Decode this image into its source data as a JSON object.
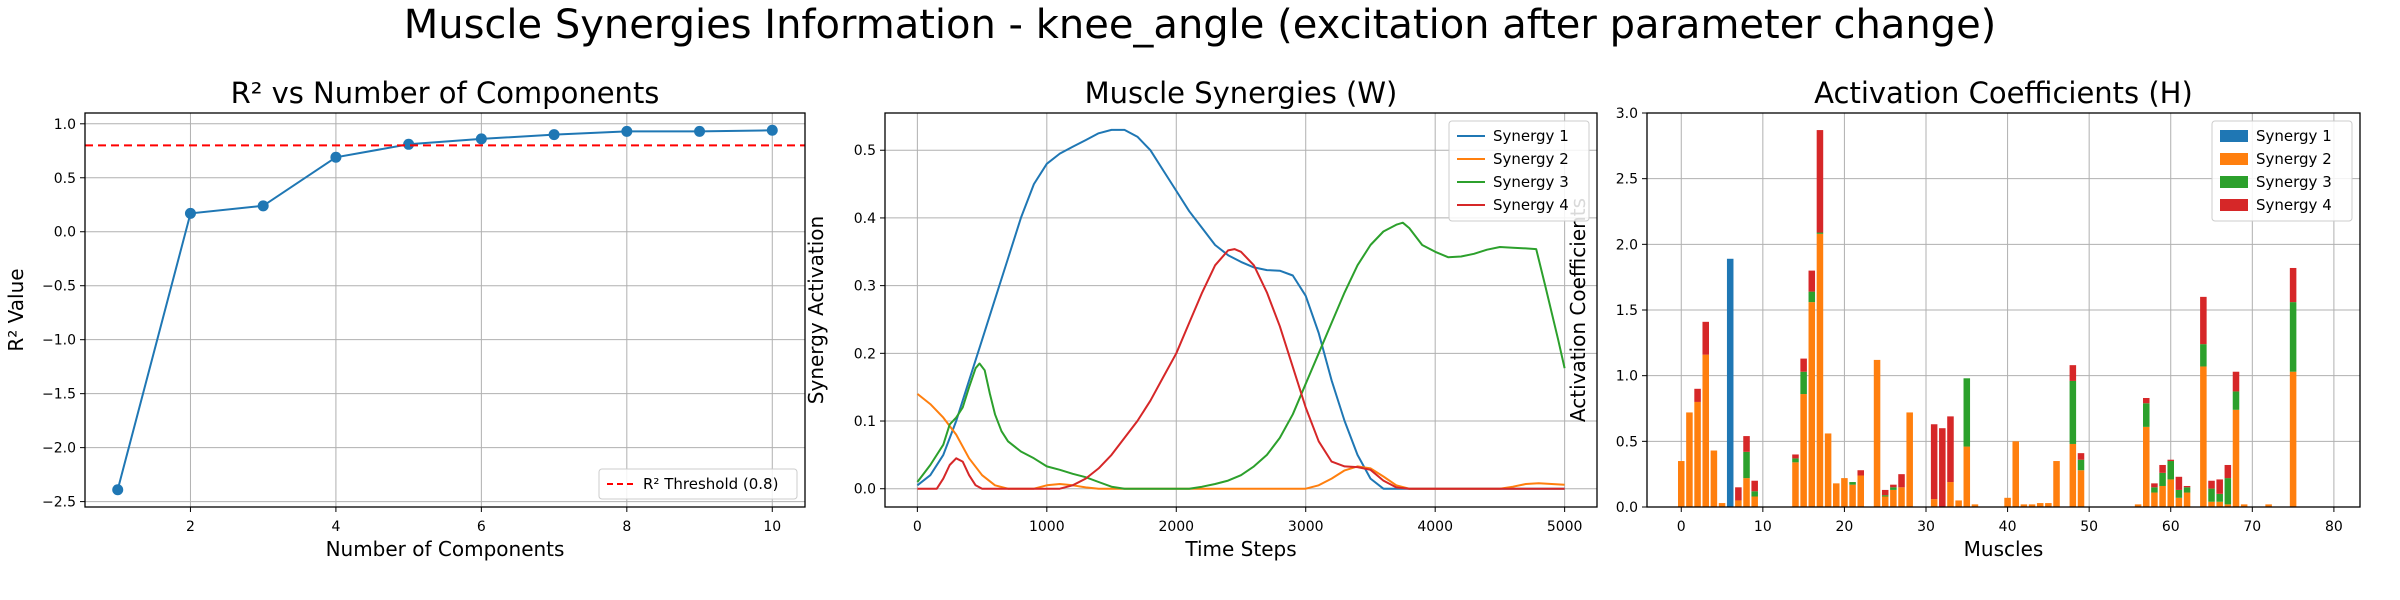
{
  "suptitle": "Muscle Synergies Information - knee_angle (excitation after parameter change)",
  "colors": {
    "blue": "#1f77b4",
    "orange": "#ff7f0e",
    "green": "#2ca02c",
    "red": "#d62728",
    "grid": "#b0b0b0",
    "threshold": "#ff0000"
  },
  "chart_data": [
    {
      "type": "line",
      "title": "R² vs Number of Components",
      "xlabel": "Number of Components",
      "ylabel": "R² Value",
      "x": [
        1,
        2,
        3,
        4,
        5,
        6,
        7,
        8,
        9,
        10
      ],
      "series": [
        {
          "values": [
            -2.39,
            0.17,
            0.24,
            0.69,
            0.81,
            0.86,
            0.9,
            0.93,
            0.93,
            0.94
          ]
        }
      ],
      "threshold": {
        "label": "R² Threshold (0.8)",
        "value": 0.8,
        "style": "dashed",
        "color": "red"
      },
      "xlim": [
        0.55,
        10.45
      ],
      "ylim": [
        -2.55,
        1.1
      ],
      "xticks": [
        2,
        4,
        6,
        8,
        10
      ],
      "yticks": [
        -2.5,
        -2.0,
        -1.5,
        -1.0,
        -0.5,
        0.0,
        0.5,
        1.0
      ],
      "ytick_labels": [
        "−2.5",
        "−2.0",
        "−1.5",
        "−1.0",
        "−0.5",
        "0.0",
        "0.5",
        "1.0"
      ],
      "grid": true,
      "legend": "lower right"
    },
    {
      "type": "line",
      "title": "Muscle Synergies (W)",
      "xlabel": "Time Steps",
      "ylabel": "Synergy Activation",
      "xlim": [
        -250,
        5250
      ],
      "ylim": [
        -0.027,
        0.555
      ],
      "xticks": [
        0,
        1000,
        2000,
        3000,
        4000,
        5000
      ],
      "yticks": [
        0.0,
        0.1,
        0.2,
        0.3,
        0.4,
        0.5
      ],
      "ytick_labels": [
        "0.0",
        "0.1",
        "0.2",
        "0.3",
        "0.4",
        "0.5"
      ],
      "grid": true,
      "legend": "upper right",
      "series": [
        {
          "name": "Synergy 1",
          "color": "blue",
          "points": [
            [
              0,
              0.005
            ],
            [
              100,
              0.02
            ],
            [
              200,
              0.05
            ],
            [
              300,
              0.1
            ],
            [
              400,
              0.16
            ],
            [
              500,
              0.22
            ],
            [
              600,
              0.28
            ],
            [
              700,
              0.34
            ],
            [
              800,
              0.4
            ],
            [
              900,
              0.45
            ],
            [
              1000,
              0.48
            ],
            [
              1100,
              0.495
            ],
            [
              1200,
              0.505
            ],
            [
              1300,
              0.515
            ],
            [
              1400,
              0.525
            ],
            [
              1500,
              0.53
            ],
            [
              1600,
              0.53
            ],
            [
              1700,
              0.52
            ],
            [
              1800,
              0.5
            ],
            [
              1900,
              0.47
            ],
            [
              2000,
              0.44
            ],
            [
              2100,
              0.41
            ],
            [
              2200,
              0.385
            ],
            [
              2300,
              0.36
            ],
            [
              2400,
              0.345
            ],
            [
              2500,
              0.335
            ],
            [
              2600,
              0.327
            ],
            [
              2700,
              0.323
            ],
            [
              2800,
              0.322
            ],
            [
              2900,
              0.315
            ],
            [
              3000,
              0.285
            ],
            [
              3100,
              0.23
            ],
            [
              3200,
              0.16
            ],
            [
              3300,
              0.1
            ],
            [
              3400,
              0.05
            ],
            [
              3500,
              0.015
            ],
            [
              3600,
              0.0
            ],
            [
              3700,
              0.0
            ],
            [
              3800,
              0.0
            ],
            [
              5000,
              0.0
            ]
          ]
        },
        {
          "name": "Synergy 2",
          "color": "orange",
          "points": [
            [
              0,
              0.14
            ],
            [
              100,
              0.125
            ],
            [
              200,
              0.105
            ],
            [
              300,
              0.08
            ],
            [
              400,
              0.045
            ],
            [
              500,
              0.02
            ],
            [
              600,
              0.005
            ],
            [
              700,
              0.0
            ],
            [
              900,
              0.0
            ],
            [
              1000,
              0.005
            ],
            [
              1100,
              0.007
            ],
            [
              1200,
              0.005
            ],
            [
              1300,
              0.002
            ],
            [
              1400,
              0.0
            ],
            [
              1500,
              0.0
            ],
            [
              3000,
              0.0
            ],
            [
              3100,
              0.005
            ],
            [
              3200,
              0.015
            ],
            [
              3300,
              0.027
            ],
            [
              3400,
              0.033
            ],
            [
              3500,
              0.03
            ],
            [
              3600,
              0.018
            ],
            [
              3700,
              0.005
            ],
            [
              3800,
              0.0
            ],
            [
              4500,
              0.0
            ],
            [
              4600,
              0.003
            ],
            [
              4700,
              0.007
            ],
            [
              4800,
              0.008
            ],
            [
              4900,
              0.007
            ],
            [
              5000,
              0.006
            ]
          ]
        },
        {
          "name": "Synergy 3",
          "color": "green",
          "points": [
            [
              0,
              0.01
            ],
            [
              100,
              0.035
            ],
            [
              200,
              0.065
            ],
            [
              250,
              0.095
            ],
            [
              300,
              0.105
            ],
            [
              350,
              0.12
            ],
            [
              400,
              0.15
            ],
            [
              450,
              0.178
            ],
            [
              480,
              0.185
            ],
            [
              520,
              0.175
            ],
            [
              560,
              0.14
            ],
            [
              600,
              0.11
            ],
            [
              650,
              0.085
            ],
            [
              700,
              0.07
            ],
            [
              800,
              0.055
            ],
            [
              900,
              0.045
            ],
            [
              1000,
              0.033
            ],
            [
              1100,
              0.028
            ],
            [
              1200,
              0.022
            ],
            [
              1300,
              0.017
            ],
            [
              1400,
              0.01
            ],
            [
              1500,
              0.003
            ],
            [
              1600,
              0.0
            ],
            [
              2100,
              0.0
            ],
            [
              2200,
              0.003
            ],
            [
              2300,
              0.007
            ],
            [
              2400,
              0.012
            ],
            [
              2500,
              0.02
            ],
            [
              2600,
              0.033
            ],
            [
              2700,
              0.05
            ],
            [
              2800,
              0.075
            ],
            [
              2900,
              0.11
            ],
            [
              3000,
              0.155
            ],
            [
              3100,
              0.2
            ],
            [
              3200,
              0.245
            ],
            [
              3300,
              0.29
            ],
            [
              3400,
              0.33
            ],
            [
              3500,
              0.36
            ],
            [
              3600,
              0.38
            ],
            [
              3700,
              0.39
            ],
            [
              3750,
              0.393
            ],
            [
              3800,
              0.385
            ],
            [
              3900,
              0.36
            ],
            [
              4000,
              0.35
            ],
            [
              4100,
              0.342
            ],
            [
              4200,
              0.343
            ],
            [
              4300,
              0.347
            ],
            [
              4400,
              0.353
            ],
            [
              4500,
              0.357
            ],
            [
              4600,
              0.356
            ],
            [
              4700,
              0.355
            ],
            [
              4780,
              0.354
            ],
            [
              4850,
              0.3
            ],
            [
              4950,
              0.22
            ],
            [
              5000,
              0.178
            ]
          ]
        },
        {
          "name": "Synergy 4",
          "color": "red",
          "points": [
            [
              0,
              0.0
            ],
            [
              150,
              0.0
            ],
            [
              200,
              0.015
            ],
            [
              250,
              0.035
            ],
            [
              300,
              0.045
            ],
            [
              350,
              0.04
            ],
            [
              400,
              0.02
            ],
            [
              450,
              0.005
            ],
            [
              500,
              0.0
            ],
            [
              1100,
              0.0
            ],
            [
              1200,
              0.005
            ],
            [
              1300,
              0.015
            ],
            [
              1400,
              0.03
            ],
            [
              1500,
              0.05
            ],
            [
              1600,
              0.075
            ],
            [
              1700,
              0.1
            ],
            [
              1800,
              0.13
            ],
            [
              1900,
              0.165
            ],
            [
              2000,
              0.2
            ],
            [
              2100,
              0.245
            ],
            [
              2200,
              0.29
            ],
            [
              2300,
              0.33
            ],
            [
              2400,
              0.352
            ],
            [
              2450,
              0.354
            ],
            [
              2500,
              0.35
            ],
            [
              2600,
              0.33
            ],
            [
              2700,
              0.29
            ],
            [
              2800,
              0.24
            ],
            [
              2900,
              0.18
            ],
            [
              3000,
              0.12
            ],
            [
              3100,
              0.07
            ],
            [
              3200,
              0.04
            ],
            [
              3300,
              0.033
            ],
            [
              3400,
              0.032
            ],
            [
              3500,
              0.028
            ],
            [
              3600,
              0.012
            ],
            [
              3700,
              0.002
            ],
            [
              3800,
              0.0
            ],
            [
              5000,
              0.0
            ]
          ]
        }
      ]
    },
    {
      "type": "bar",
      "stacked": true,
      "title": "Activation Coefficients (H)",
      "xlabel": "Muscles",
      "ylabel": "Activation Coefficients",
      "xlim": [
        -4.2,
        83.2
      ],
      "ylim": [
        0,
        3.0
      ],
      "xticks": [
        0,
        10,
        20,
        30,
        40,
        50,
        60,
        70,
        80
      ],
      "yticks": [
        0.0,
        0.5,
        1.0,
        1.5,
        2.0,
        2.5,
        3.0
      ],
      "ytick_labels": [
        "0.0",
        "0.5",
        "1.0",
        "1.5",
        "2.0",
        "2.5",
        "3.0"
      ],
      "grid": true,
      "legend": "upper right",
      "note_on_values": "each entry is [muscle index, Synergy 1, Synergy 2, Synergy 3, Synergy 4]",
      "series_names": [
        "Synergy 1",
        "Synergy 2",
        "Synergy 3",
        "Synergy 4"
      ],
      "series_colors": [
        "blue",
        "orange",
        "green",
        "red"
      ],
      "muscles": [
        [
          0,
          0,
          0.35,
          0,
          0
        ],
        [
          1,
          0,
          0.72,
          0,
          0
        ],
        [
          2,
          0,
          0.8,
          0,
          0.1
        ],
        [
          3,
          0,
          1.16,
          0,
          0.25
        ],
        [
          4,
          0,
          0.43,
          0,
          0
        ],
        [
          5,
          0,
          0.03,
          0,
          0
        ],
        [
          6,
          1.89,
          0,
          0,
          0
        ],
        [
          7,
          0,
          0.05,
          0,
          0.1
        ],
        [
          8,
          0,
          0.22,
          0.2,
          0.12
        ],
        [
          9,
          0,
          0.08,
          0.04,
          0.08
        ],
        [
          14,
          0,
          0.34,
          0.03,
          0.03
        ],
        [
          15,
          0,
          0.86,
          0.17,
          0.1
        ],
        [
          16,
          0,
          1.56,
          0.08,
          0.16
        ],
        [
          17,
          0,
          2.08,
          0.01,
          0.78
        ],
        [
          18,
          0,
          0.56,
          0,
          0
        ],
        [
          19,
          0,
          0.18,
          0,
          0
        ],
        [
          20,
          0,
          0.22,
          0,
          0
        ],
        [
          21,
          0,
          0.17,
          0.02,
          0
        ],
        [
          22,
          0,
          0.24,
          0,
          0.04
        ],
        [
          24,
          0,
          1.12,
          0,
          0
        ],
        [
          25,
          0,
          0.08,
          0.01,
          0.04
        ],
        [
          26,
          0,
          0.13,
          0.02,
          0.02
        ],
        [
          27,
          0,
          0.15,
          0,
          0.1
        ],
        [
          28,
          0,
          0.72,
          0,
          0
        ],
        [
          31,
          0,
          0.06,
          0,
          0.57
        ],
        [
          32,
          0,
          0,
          0,
          0.6
        ],
        [
          33,
          0,
          0.19,
          0,
          0.5
        ],
        [
          34,
          0,
          0.05,
          0,
          0
        ],
        [
          35,
          0,
          0.46,
          0.52,
          0
        ],
        [
          36,
          0,
          0.02,
          0,
          0
        ],
        [
          40,
          0,
          0.07,
          0,
          0
        ],
        [
          41,
          0,
          0.5,
          0,
          0
        ],
        [
          42,
          0,
          0.02,
          0,
          0
        ],
        [
          43,
          0,
          0.02,
          0,
          0
        ],
        [
          44,
          0,
          0.03,
          0,
          0
        ],
        [
          45,
          0,
          0.03,
          0,
          0
        ],
        [
          46,
          0,
          0.35,
          0,
          0
        ],
        [
          48,
          0,
          0.48,
          0.48,
          0.12
        ],
        [
          49,
          0,
          0.28,
          0.08,
          0.05
        ],
        [
          56,
          0,
          0.02,
          0,
          0
        ],
        [
          57,
          0,
          0.61,
          0.18,
          0.04
        ],
        [
          58,
          0,
          0.11,
          0.04,
          0.03
        ],
        [
          59,
          0,
          0.16,
          0.1,
          0.06
        ],
        [
          60,
          0,
          0.21,
          0.14,
          0.01
        ],
        [
          61,
          0,
          0.07,
          0.06,
          0.1
        ],
        [
          62,
          0,
          0.11,
          0.04,
          0.01
        ],
        [
          64,
          0,
          1.07,
          0.17,
          0.36
        ],
        [
          65,
          0,
          0.04,
          0.1,
          0.06
        ],
        [
          66,
          0,
          0.04,
          0.06,
          0.11
        ],
        [
          67,
          0,
          0.02,
          0.2,
          0.1
        ],
        [
          68,
          0,
          0.74,
          0.14,
          0.15
        ],
        [
          69,
          0,
          0.02,
          0,
          0
        ],
        [
          72,
          0,
          0.02,
          0,
          0
        ],
        [
          75,
          0,
          1.03,
          0.53,
          0.26
        ]
      ]
    }
  ]
}
